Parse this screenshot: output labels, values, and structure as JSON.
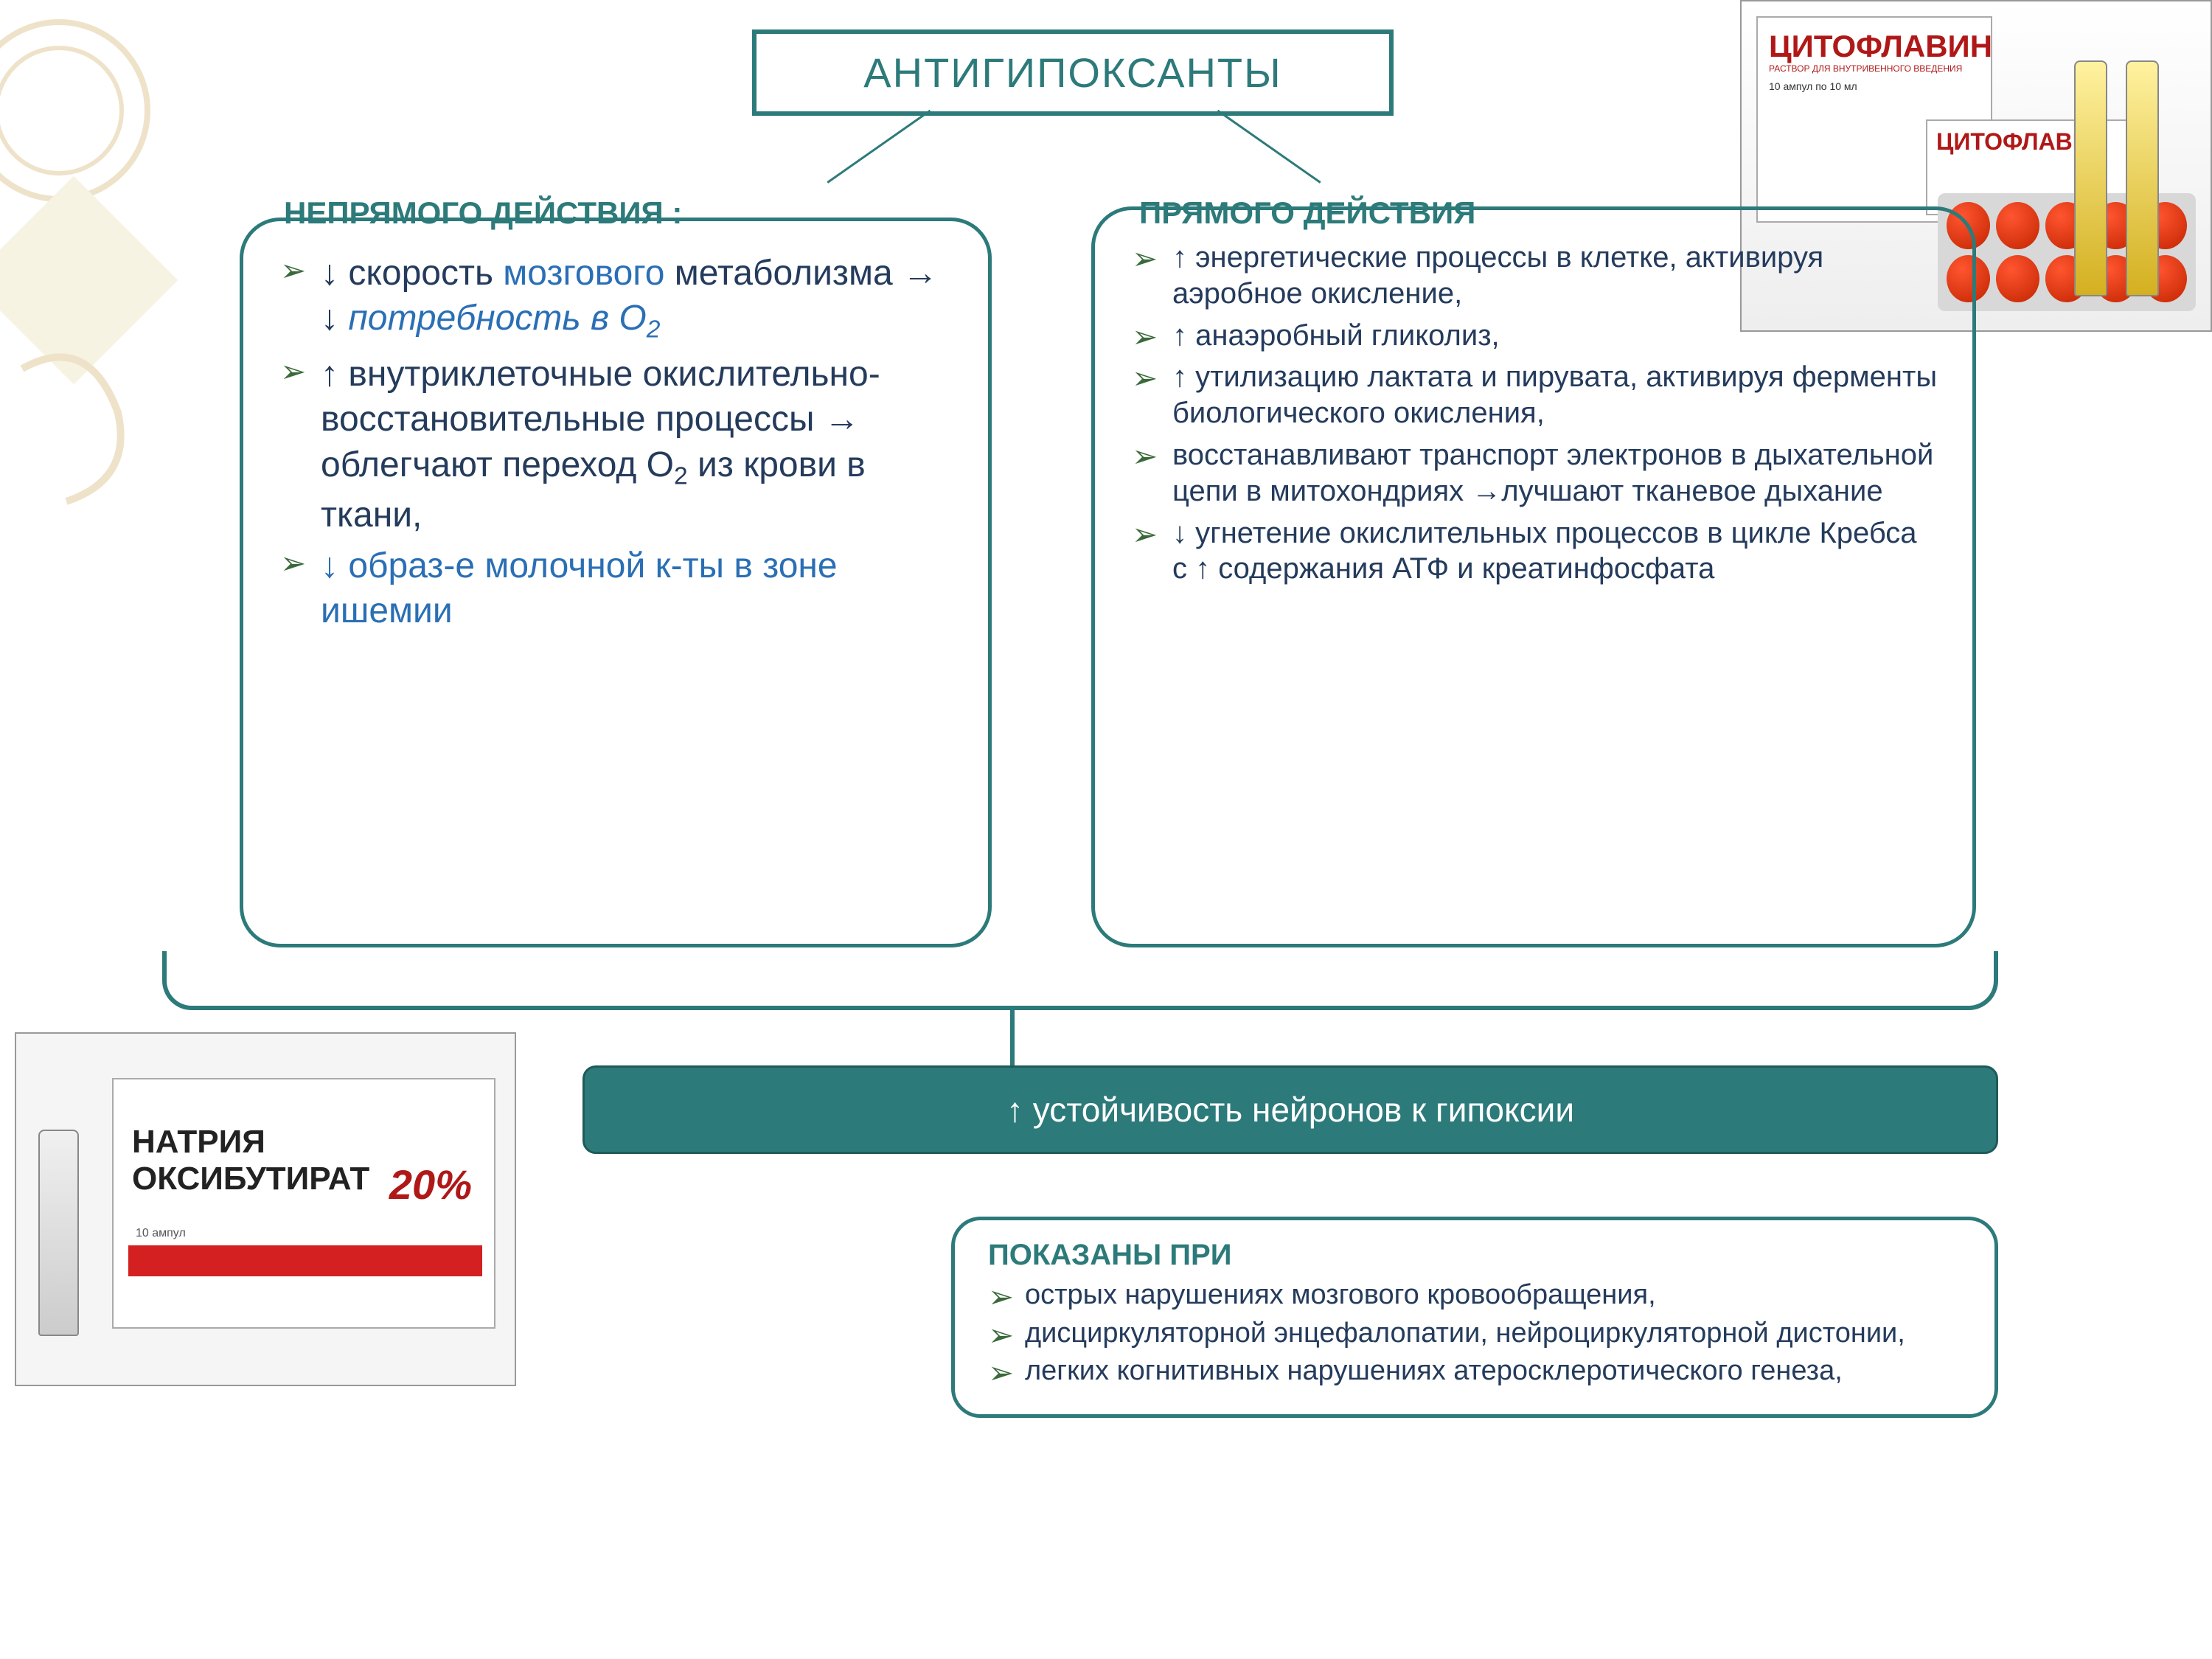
{
  "title": "АНТИГИПОКСАНТЫ",
  "left": {
    "heading": "НЕПРЯМОГО ДЕЙСТВИЯ  :",
    "items": [
      "↓ скорость <span class='blue'>мозгового</span> метаболизма → ↓ <span class='blue italic'>потребность в O<span class='sub'>2</span></span>",
      "↑ внутриклеточные окислительно-восстановительные процессы → облегчают переход  O<span class='sub'>2</span> из крови в ткани,",
      "<span class='blue'>↓ образ-е молочной к-ты в зоне ишемии</span>"
    ]
  },
  "right": {
    "heading": "ПРЯМОГО ДЕЙСТВИЯ",
    "items": [
      "↑ энергетические процессы в клетке, активируя аэробное окисление,",
      "↑ анаэробный гликолиз,",
      "↑  утилизацию лактата и пирувата, активируя ферменты биологического окисления,",
      " восстанавливают транспорт электронов в дыхательной цепи в митохондриях  →лучшают тканевое дыхание",
      "↓ угнетение окислительных процессов в цикле Кребса с ↑ содержания АТФ и креатинфосфата"
    ]
  },
  "result": "↑  устойчивость нейронов к гипоксии",
  "indications": {
    "heading": "ПОКАЗАНЫ ПРИ",
    "items": [
      "острых нарушениях мозгового кровообращения,",
      "дисциркуляторной энцефалопатии, нейроциркуляторной дистонии,",
      "легких когнитивных нарушениях атеросклеротического генеза,"
    ]
  },
  "drug_top": {
    "name": "ЦИТОФЛАВИН",
    "sub": "РАСТВОР ДЛЯ ВНУТРИВЕННОГО ВВЕДЕНИЯ",
    "dose": "10 ампул по 10 мл"
  },
  "drug_left": {
    "name": "НАТРИЯ ОКСИБУТИРАТ",
    "pct": "20%"
  },
  "colors": {
    "teal": "#2d7a7a",
    "navy": "#243b5c",
    "blue": "#2a6fb5",
    "red": "#b01818"
  }
}
